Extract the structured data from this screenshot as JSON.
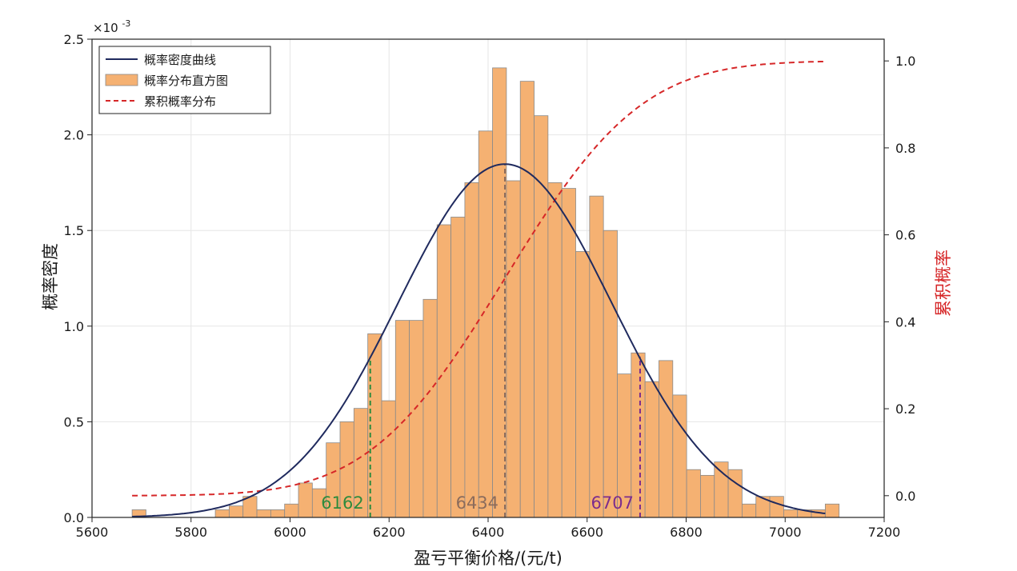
{
  "chart_data": {
    "type": "histogram",
    "x_axis": {
      "label": "盈亏平衡价格/(元/t)",
      "range": [
        5600,
        7200
      ],
      "ticks": [
        5600,
        5800,
        6000,
        6200,
        6400,
        6600,
        6800,
        7000,
        7200
      ]
    },
    "y_axis_left": {
      "label": "概率密度",
      "multiplier": "×10",
      "multiplier_exp": "-3",
      "range": [
        0,
        2.5
      ],
      "ticks": [
        0.0,
        0.5,
        1.0,
        1.5,
        2.0,
        2.5
      ],
      "tick_labels": [
        "0.0",
        "0.5",
        "1.0",
        "1.5",
        "2.0",
        "2.5"
      ]
    },
    "y_axis_right": {
      "label": "累积概率",
      "range": [
        -0.05,
        1.05
      ],
      "ticks": [
        0.0,
        0.2,
        0.4,
        0.6,
        0.8,
        1.0
      ],
      "tick_labels": [
        "0.0",
        "0.2",
        "0.4",
        "0.6",
        "0.8",
        "1.0"
      ],
      "color": "#d62728"
    },
    "grid": true,
    "legend": {
      "placement": "top-left",
      "entries": [
        {
          "label": "概率密度曲线",
          "kind": "line",
          "color": "#1f2a5e"
        },
        {
          "label": "概率分布直方图",
          "kind": "bar",
          "color": "#f5b172"
        },
        {
          "label": "累积概率分布",
          "kind": "dashed-line",
          "color": "#d62728"
        }
      ]
    },
    "histogram": {
      "bin_width": 28,
      "bin_start": 5681,
      "fill": "#f5b172",
      "edge": "#8a8a8a",
      "heights": [
        0.04,
        0,
        0,
        0,
        0,
        0,
        0.04,
        0.06,
        0.11,
        0.04,
        0.04,
        0.07,
        0.18,
        0.15,
        0.39,
        0.5,
        0.57,
        0.96,
        0.61,
        1.03,
        1.03,
        1.14,
        1.53,
        1.57,
        1.75,
        2.02,
        2.35,
        1.76,
        2.28,
        2.1,
        1.75,
        1.72,
        1.39,
        1.68,
        1.5,
        0.75,
        0.86,
        0.71,
        0.82,
        0.64,
        0.25,
        0.22,
        0.29,
        0.25,
        0.07,
        0.11,
        0.11,
        0.04,
        0.04,
        0.04,
        0.07
      ]
    },
    "density_curve": {
      "color": "#1f2a5e",
      "mean": 6434,
      "std": 216,
      "x_range": [
        5681,
        7081
      ]
    },
    "cumulative_curve": {
      "color": "#d62728",
      "x_range": [
        5681,
        7081
      ]
    },
    "markers": [
      {
        "x": 6162,
        "label": "6162",
        "color": "#2e8b3e",
        "top": 0.84
      },
      {
        "x": 6434,
        "label": "6434",
        "color": "#8b6c5c",
        "top": 1.85
      },
      {
        "x": 6707,
        "label": "6707",
        "color": "#7b2d8e",
        "top": 0.84
      }
    ]
  }
}
